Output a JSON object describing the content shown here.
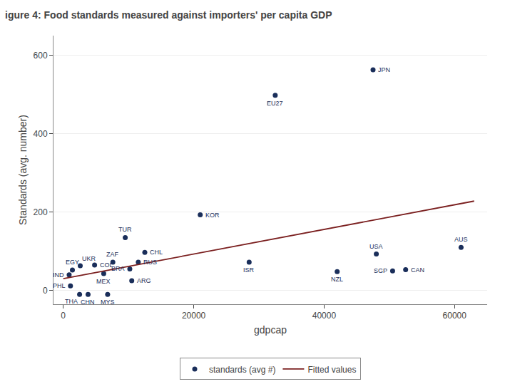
{
  "chart_data": {
    "type": "scatter",
    "title": "igure 4: Food standards measured against importers' per capita GDP",
    "xlabel": "gdpcap",
    "ylabel": "Standards (avg. number)",
    "xlim": [
      -1500,
      65000
    ],
    "ylim": [
      -35,
      650
    ],
    "xticks": [
      0,
      20000,
      40000,
      60000
    ],
    "yticks": [
      0,
      200,
      400,
      600
    ],
    "grid": "y",
    "legend": "bottom",
    "series": [
      {
        "name": "standards (avg #)",
        "type": "scatter",
        "marker": "circle",
        "color": "#1a2e5a",
        "labels": [
          "EGY",
          "IND",
          "PHL",
          "THA",
          "UKR",
          "CHN",
          "MYS",
          "COL",
          "MEX",
          "ZAF",
          "RUS",
          "BRA",
          "ARG",
          "CHL",
          "TUR",
          "KOR",
          "ISR",
          "EU27",
          "NZL",
          "JPN",
          "USA",
          "SGP",
          "CAN",
          "AUS"
        ],
        "x": [
          1400,
          900,
          1100,
          2500,
          2600,
          3800,
          6800,
          4800,
          6200,
          7600,
          11500,
          10200,
          10500,
          12500,
          9500,
          21000,
          28500,
          32500,
          42000,
          47500,
          48000,
          50500,
          52500,
          61000
        ],
        "values": [
          52,
          40,
          12,
          -10,
          63,
          -10,
          -10,
          65,
          43,
          72,
          72,
          55,
          25,
          97,
          135,
          193,
          72,
          498,
          48,
          563,
          93,
          50,
          53,
          110
        ]
      },
      {
        "name": "Fitted values",
        "type": "line",
        "line_style": "solid",
        "color": "#7b2020",
        "x": [
          0,
          63000
        ],
        "values": [
          30,
          228
        ]
      }
    ]
  }
}
